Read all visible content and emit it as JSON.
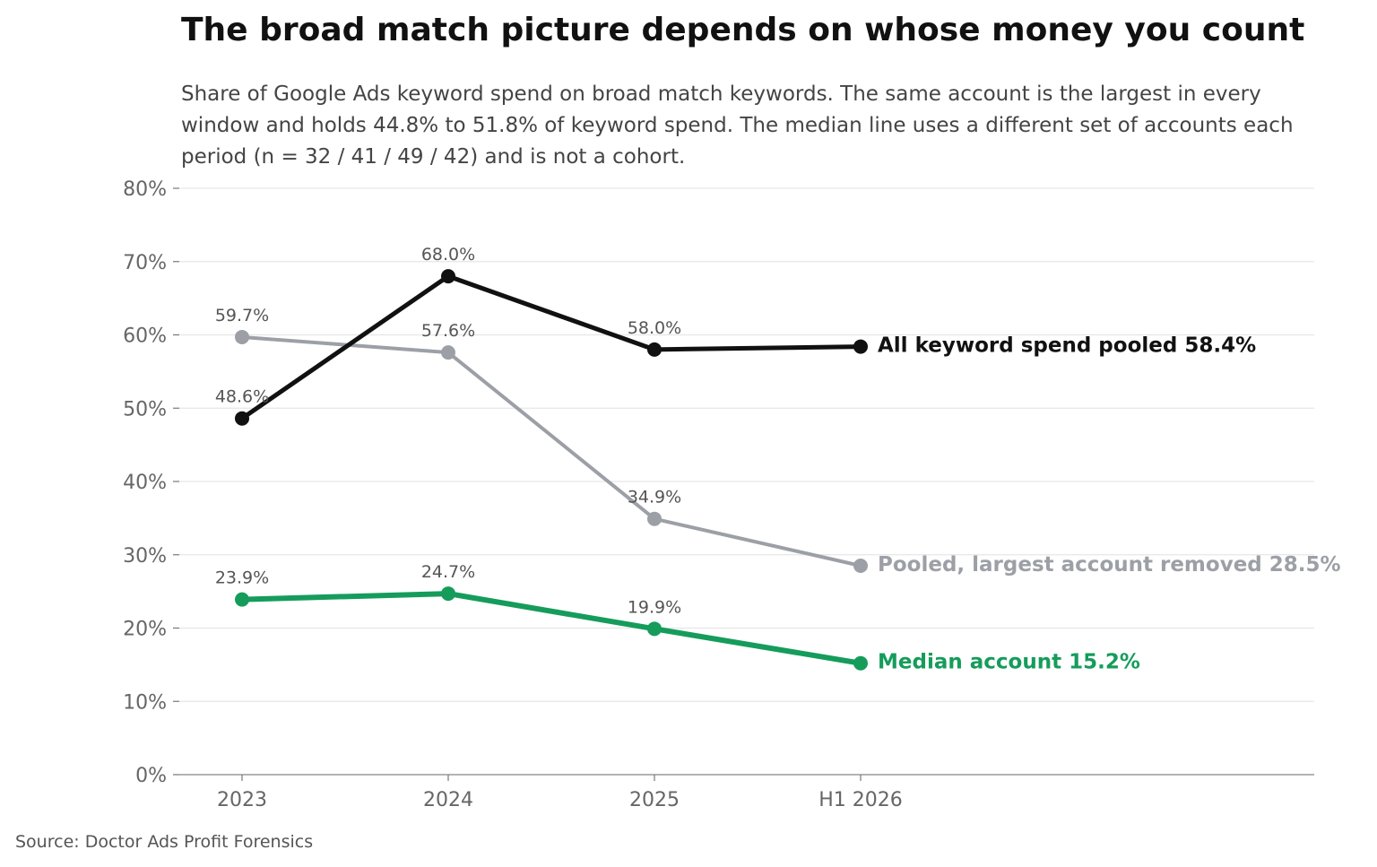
{
  "chart_data": {
    "type": "line",
    "title": "The broad match picture depends on whose money you count",
    "subtitle_lines": [
      "Share of Google Ads keyword spend on broad match keywords. The same account is the largest in every",
      "window and holds 44.8% to 51.8% of keyword spend. The median line uses a different set of accounts each",
      "period (n = 32 / 41 / 49 / 42) and is not a cohort."
    ],
    "categories": [
      "2023",
      "2024",
      "2025",
      "H1 2026"
    ],
    "ylim": [
      0,
      80
    ],
    "yticks": [
      0,
      10,
      20,
      30,
      40,
      50,
      60,
      70,
      80
    ],
    "ytick_labels": [
      "0%",
      "10%",
      "20%",
      "30%",
      "40%",
      "50%",
      "60%",
      "70%",
      "80%"
    ],
    "grid": "horizontal",
    "legend": "direct labels at line ends",
    "series": [
      {
        "name": "All keyword spend pooled",
        "color": "#111111",
        "values": [
          48.6,
          68.0,
          58.0,
          58.4
        ],
        "point_labels": [
          "48.6%",
          "68.0%",
          "58.0%",
          null
        ],
        "end_label": "All keyword spend pooled  58.4%"
      },
      {
        "name": "Pooled, largest account removed",
        "color": "#9ca0a6",
        "values": [
          59.7,
          57.6,
          34.9,
          28.5
        ],
        "point_labels": [
          "59.7%",
          "57.6%",
          "34.9%",
          null
        ],
        "end_label": "Pooled, largest account removed  28.5%"
      },
      {
        "name": "Median account",
        "color": "#159c5b",
        "values": [
          23.9,
          24.7,
          19.9,
          15.2
        ],
        "point_labels": [
          "23.9%",
          "24.7%",
          "19.9%",
          null
        ],
        "end_label": "Median account  15.2%"
      }
    ],
    "source": "Source: Doctor Ads Profit Forensics"
  }
}
